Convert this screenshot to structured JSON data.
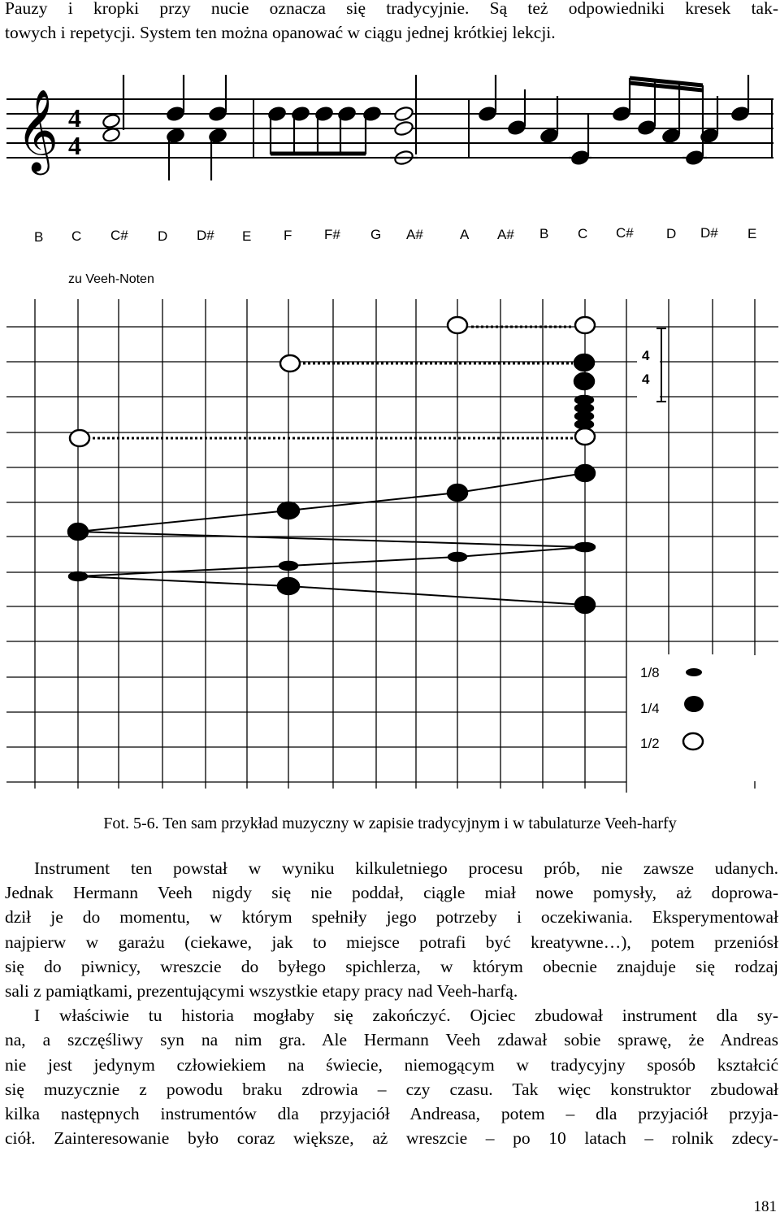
{
  "intro": {
    "lines": [
      "Pauzy i kropki przy nucie oznacza się tradycyjnie. Są też odpowiedniki kresek tak-",
      "towych i repetycji. System ten można opanować w ciągu jednej krótkiej lekcji."
    ]
  },
  "figure": {
    "time_signature": [
      "4",
      "4"
    ],
    "note_names": [
      "B",
      "C",
      "C#",
      "D",
      "D#",
      "E",
      "F",
      "F#",
      "G",
      "A#",
      "A",
      "A#",
      "B",
      "C",
      "C#",
      "D",
      "D#",
      "E"
    ],
    "veeh_label": "zu Veeh-Noten",
    "tab_time_signature": [
      "4",
      "4"
    ],
    "legend": [
      {
        "label": "1/8",
        "symbol": "eighth-note"
      },
      {
        "label": "1/4",
        "symbol": "quarter-note"
      },
      {
        "label": "1/2",
        "symbol": "half-note"
      }
    ]
  },
  "caption": "Fot. 5-6. Ten sam przykład muzyczny w zapisie tradycyjnym i w tabulaturze Veeh-harfy",
  "body": {
    "lines": [
      "Instrument ten powstał w wyniku kilkuletniego procesu prób, nie zawsze udanych.",
      "Jednak Hermann Veeh nigdy się nie poddał, ciągle miał nowe pomysły, aż doprowa-",
      "dził je do momentu, w którym spełniły jego potrzeby i oczekiwania. Eksperymentował",
      "najpierw w garażu (ciekawe, jak to miejsce potrafi być kreatywne…), potem przeniósł",
      "się do piwnicy, wreszcie do byłego spichlerza, w którym obecnie znajduje się rodzaj",
      "sali z pamiątkami, prezentującymi wszystkie etapy pracy nad Veeh-harfą.",
      "I właściwie tu historia mogłaby się zakończyć. Ojciec zbudował instrument dla sy-",
      "na, a szczęśliwy syn na nim gra. Ale Hermann Veeh zdawał sobie sprawę, że Andreas",
      "nie jest jedynym człowiekiem na świecie, niemogącym w tradycyjny sposób kształcić",
      "się muzycznie z powodu braku zdrowia – czy czasu. Tak więc konstruktor zbudował",
      "kilka następnych instrumentów dla przyjaciół Andreasa, potem – dla przyjaciół przyja-",
      "ciół. Zainteresowanie było coraz większe, aż wreszcie – po 10 latach – rolnik zdecy-"
    ]
  },
  "page_number": "181"
}
